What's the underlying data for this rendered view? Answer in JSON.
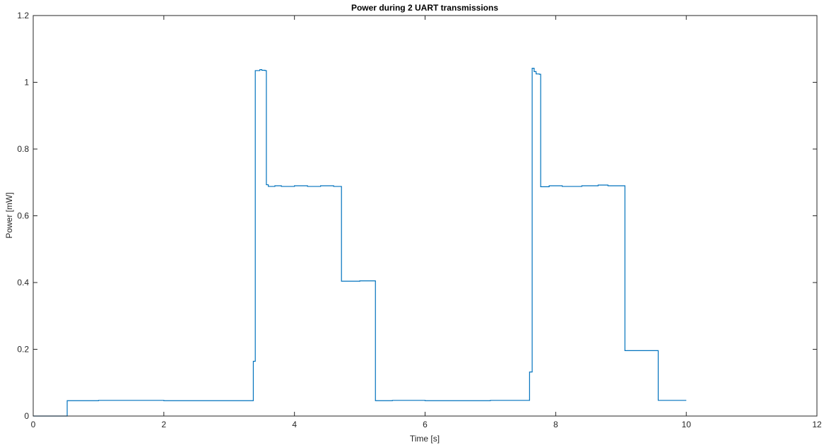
{
  "chart_data": {
    "type": "line",
    "title": "Power during 2 UART transmissions",
    "xlabel": "Time [s]",
    "ylabel": "Power [mW]",
    "xlim": [
      0,
      12
    ],
    "ylim": [
      0,
      1.2
    ],
    "xticks": [
      0,
      2,
      4,
      6,
      8,
      10,
      12
    ],
    "yticks": [
      0,
      0.2,
      0.4,
      0.6,
      0.8,
      1,
      1.2
    ],
    "xtick_labels": [
      "0",
      "2",
      "4",
      "6",
      "8",
      "10",
      "12"
    ],
    "ytick_labels": [
      "0",
      "0.2",
      "0.4",
      "0.6",
      "0.8",
      "1",
      "1.2"
    ],
    "grid": false,
    "line_color": "#0072BD",
    "series": [
      {
        "x": [
          0,
          0.52,
          0.52,
          1.0,
          1.0,
          2.0,
          2.0,
          3.37,
          3.37,
          3.4,
          3.4,
          3.47,
          3.47,
          3.5,
          3.5,
          3.55,
          3.55,
          3.57,
          3.57,
          3.6,
          3.6,
          3.7,
          3.7,
          3.8,
          3.8,
          4.0,
          4.0,
          4.2,
          4.2,
          4.4,
          4.4,
          4.6,
          4.6,
          4.72,
          4.72,
          5.0,
          5.0,
          5.24,
          5.24,
          5.5,
          5.5,
          6.0,
          6.0,
          7.0,
          7.0,
          7.6,
          7.6,
          7.64,
          7.64,
          7.67,
          7.67,
          7.7,
          7.7,
          7.75,
          7.75,
          7.77,
          7.77,
          7.9,
          7.9,
          8.1,
          8.1,
          8.4,
          8.4,
          8.65,
          8.65,
          8.8,
          8.8,
          9.06,
          9.06,
          9.57,
          9.57,
          10.0
        ],
        "y": [
          0.0,
          0.0,
          0.046,
          0.046,
          0.047,
          0.047,
          0.046,
          0.046,
          0.164,
          0.164,
          1.035,
          1.035,
          1.038,
          1.038,
          1.036,
          1.036,
          1.035,
          1.035,
          0.693,
          0.693,
          0.688,
          0.688,
          0.69,
          0.69,
          0.688,
          0.688,
          0.69,
          0.69,
          0.688,
          0.688,
          0.69,
          0.69,
          0.688,
          0.688,
          0.404,
          0.404,
          0.405,
          0.405,
          0.046,
          0.046,
          0.047,
          0.047,
          0.046,
          0.046,
          0.047,
          0.047,
          0.132,
          0.132,
          1.042,
          1.042,
          1.032,
          1.032,
          1.025,
          1.025,
          1.024,
          1.024,
          0.687,
          0.687,
          0.69,
          0.69,
          0.688,
          0.688,
          0.69,
          0.69,
          0.692,
          0.692,
          0.69,
          0.69,
          0.196,
          0.196,
          0.047,
          0.047
        ]
      }
    ]
  }
}
